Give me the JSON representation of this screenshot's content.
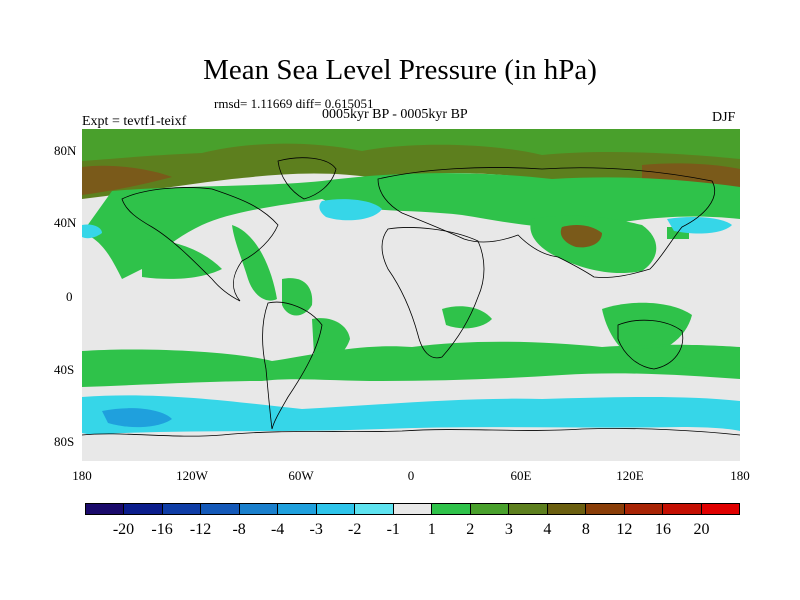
{
  "title": "Mean Sea Level Pressure (in hPa)",
  "stats": "rmsd= 1.11669 diff= 0.615051",
  "period": "0005kyr BP - 0005kyr BP",
  "experiment": "Expt = tevtf1-teixf",
  "season": "DJF",
  "y_ticks": [
    "80N",
    "40N",
    "0",
    "40S",
    "80S"
  ],
  "x_ticks": [
    "180",
    "120W",
    "60W",
    "0",
    "60E",
    "120E",
    "180"
  ],
  "colorbar": {
    "labels": [
      "-20",
      "-16",
      "-12",
      "-8",
      "-4",
      "-3",
      "-2",
      "-1",
      "1",
      "2",
      "3",
      "4",
      "8",
      "12",
      "16",
      "20"
    ],
    "colors": [
      "#1a0a6b",
      "#0b1d8c",
      "#0f3da6",
      "#1459b8",
      "#1a7fcc",
      "#1fa0dd",
      "#2ec4ea",
      "#5ee3f0",
      "#e8e8e8",
      "#2fc24a",
      "#49a02c",
      "#5d7f1e",
      "#6b5f10",
      "#8a3e08",
      "#a82405",
      "#c40f02",
      "#e00000"
    ]
  },
  "colors": {
    "neutral": "#e8e8e8",
    "green": "#2fc24a",
    "dark_green": "#49a02c",
    "olive": "#5d7f1e",
    "brown": "#7a5a1a",
    "cyan": "#36d6e8",
    "mid_blue": "#1fa0dd"
  }
}
